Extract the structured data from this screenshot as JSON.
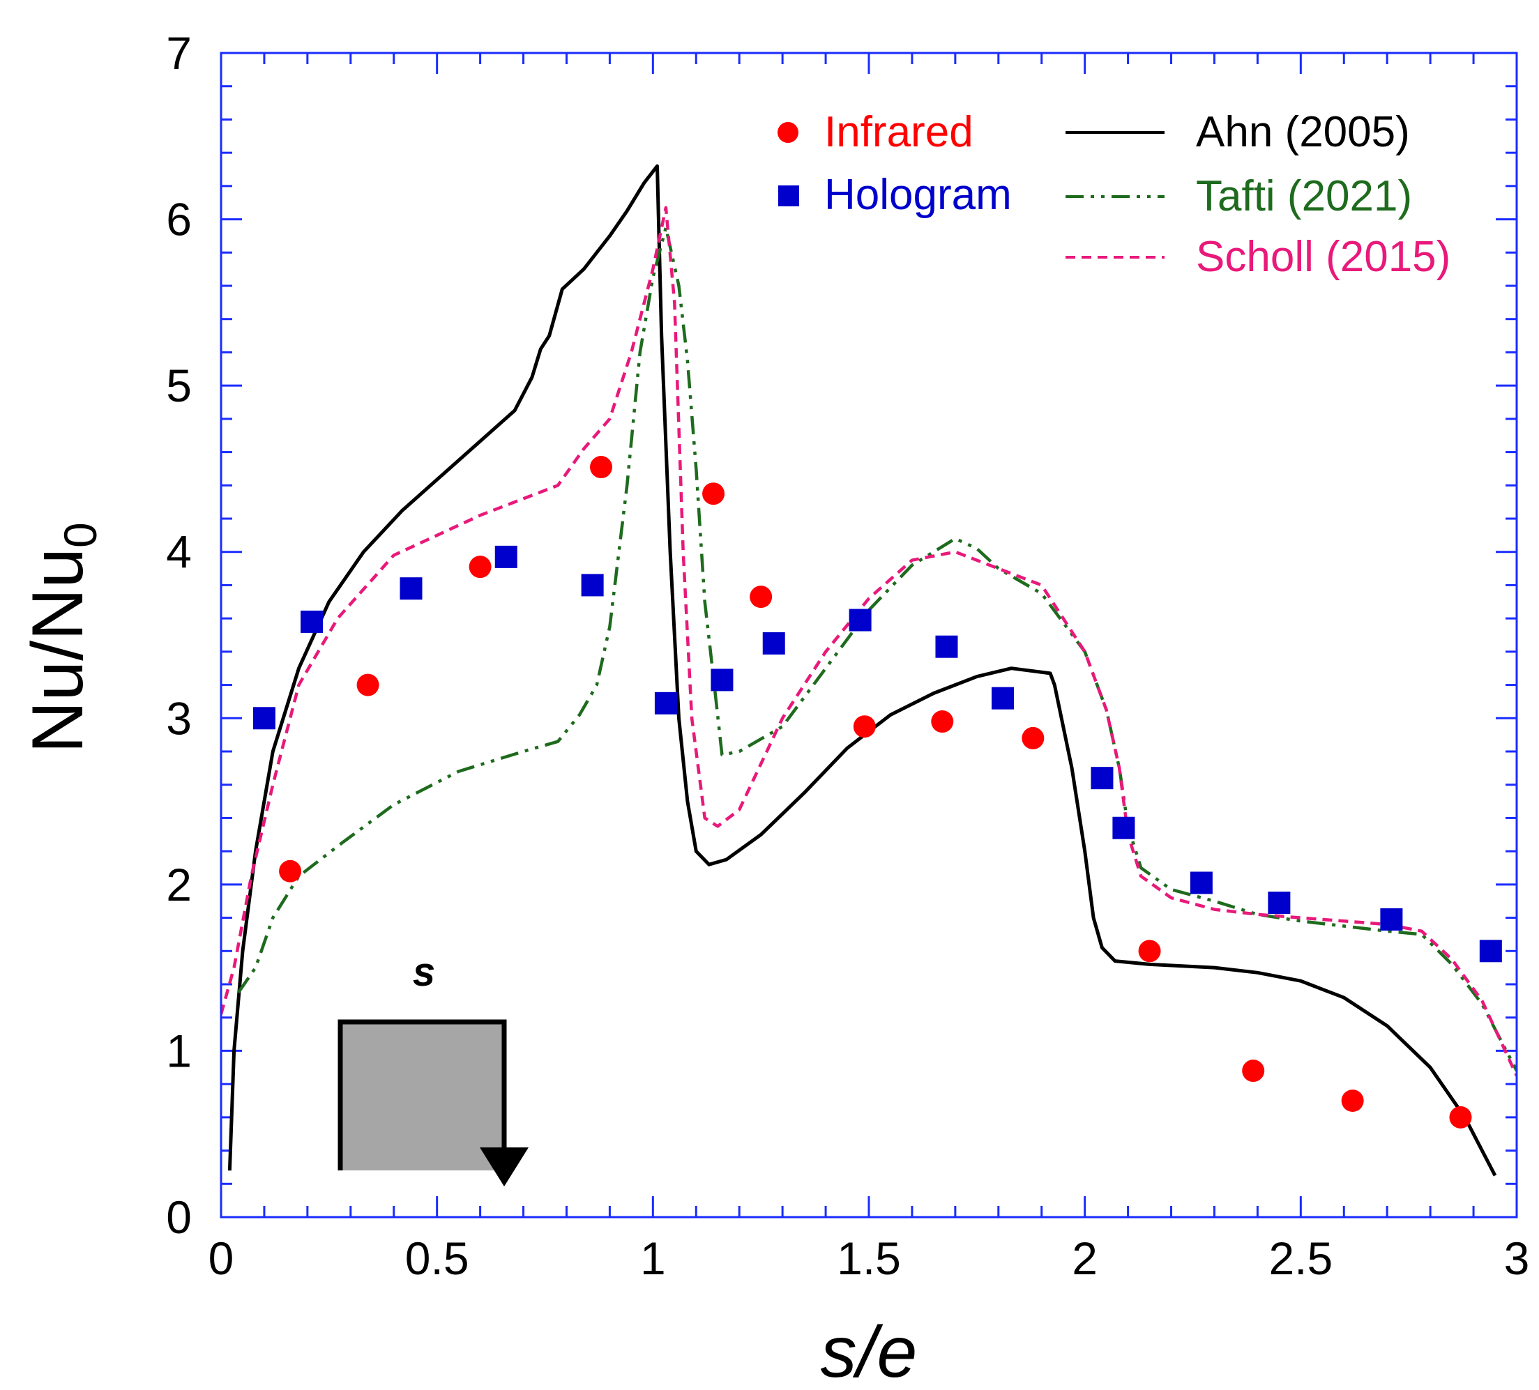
{
  "chart_data": {
    "type": "line",
    "xlabel_main": "s/e",
    "ylabel_main": "Nu/Nu",
    "ylabel_sub": "0",
    "xlim": [
      0,
      3
    ],
    "ylim": [
      0,
      7
    ],
    "x_ticks": [
      "0",
      "0.5",
      "1",
      "1.5",
      "2",
      "2.5",
      "3"
    ],
    "y_ticks": [
      "0",
      "1",
      "2",
      "3",
      "4",
      "5",
      "6",
      "7"
    ],
    "inset_label": "s",
    "series": [
      {
        "name": "Infrared",
        "kind": "scatter",
        "marker": "circle",
        "color": "#ff0000",
        "points": [
          [
            0.16,
            2.08
          ],
          [
            0.34,
            3.2
          ],
          [
            0.6,
            3.91
          ],
          [
            0.88,
            4.51
          ],
          [
            1.14,
            4.35
          ],
          [
            1.25,
            3.73
          ],
          [
            1.49,
            2.95
          ],
          [
            1.67,
            2.98
          ],
          [
            1.88,
            2.88
          ],
          [
            2.15,
            1.6
          ],
          [
            2.39,
            0.88
          ],
          [
            2.62,
            0.7
          ],
          [
            2.87,
            0.6
          ]
        ]
      },
      {
        "name": "Hologram",
        "kind": "scatter",
        "marker": "square",
        "color": "#0000cc",
        "points": [
          [
            0.1,
            3.0
          ],
          [
            0.21,
            3.58
          ],
          [
            0.44,
            3.78
          ],
          [
            0.66,
            3.97
          ],
          [
            0.86,
            3.8
          ],
          [
            1.03,
            3.09
          ],
          [
            1.16,
            3.23
          ],
          [
            1.28,
            3.45
          ],
          [
            1.48,
            3.59
          ],
          [
            1.68,
            3.43
          ],
          [
            1.81,
            3.12
          ],
          [
            2.04,
            2.64
          ],
          [
            2.09,
            2.34
          ],
          [
            2.27,
            2.01
          ],
          [
            2.45,
            1.89
          ],
          [
            2.71,
            1.79
          ],
          [
            2.94,
            1.6
          ]
        ]
      },
      {
        "name": "Ahn (2005)",
        "kind": "line",
        "dash": "solid",
        "color": "#000000",
        "points": [
          [
            0.02,
            0.28
          ],
          [
            0.03,
            1.0
          ],
          [
            0.05,
            1.6
          ],
          [
            0.08,
            2.2
          ],
          [
            0.12,
            2.8
          ],
          [
            0.18,
            3.3
          ],
          [
            0.25,
            3.7
          ],
          [
            0.33,
            4.0
          ],
          [
            0.42,
            4.25
          ],
          [
            0.55,
            4.55
          ],
          [
            0.68,
            4.85
          ],
          [
            0.72,
            5.05
          ],
          [
            0.74,
            5.22
          ],
          [
            0.76,
            5.3
          ],
          [
            0.79,
            5.58
          ],
          [
            0.84,
            5.7
          ],
          [
            0.9,
            5.9
          ],
          [
            0.94,
            6.05
          ],
          [
            0.98,
            6.22
          ],
          [
            1.01,
            6.32
          ],
          [
            1.013,
            6.0
          ],
          [
            1.02,
            5.3
          ],
          [
            1.04,
            4.0
          ],
          [
            1.06,
            3.0
          ],
          [
            1.08,
            2.5
          ],
          [
            1.1,
            2.2
          ],
          [
            1.13,
            2.12
          ],
          [
            1.17,
            2.15
          ],
          [
            1.25,
            2.3
          ],
          [
            1.35,
            2.55
          ],
          [
            1.45,
            2.82
          ],
          [
            1.55,
            3.02
          ],
          [
            1.65,
            3.15
          ],
          [
            1.75,
            3.25
          ],
          [
            1.83,
            3.3
          ],
          [
            1.92,
            3.27
          ],
          [
            1.93,
            3.2
          ],
          [
            1.97,
            2.7
          ],
          [
            2.0,
            2.2
          ],
          [
            2.02,
            1.8
          ],
          [
            2.04,
            1.62
          ],
          [
            2.07,
            1.54
          ],
          [
            2.15,
            1.52
          ],
          [
            2.3,
            1.5
          ],
          [
            2.4,
            1.47
          ],
          [
            2.5,
            1.42
          ],
          [
            2.6,
            1.32
          ],
          [
            2.7,
            1.15
          ],
          [
            2.8,
            0.9
          ],
          [
            2.88,
            0.6
          ],
          [
            2.95,
            0.25
          ]
        ]
      },
      {
        "name": "Tafti (2021)",
        "kind": "line",
        "dash": "dashdot",
        "color": "#1e6b1e",
        "points": [
          [
            0.04,
            1.35
          ],
          [
            0.08,
            1.5
          ],
          [
            0.12,
            1.8
          ],
          [
            0.18,
            2.05
          ],
          [
            0.28,
            2.25
          ],
          [
            0.4,
            2.48
          ],
          [
            0.55,
            2.68
          ],
          [
            0.7,
            2.8
          ],
          [
            0.78,
            2.86
          ],
          [
            0.83,
            3.02
          ],
          [
            0.87,
            3.2
          ],
          [
            0.9,
            3.55
          ],
          [
            0.94,
            4.4
          ],
          [
            0.97,
            5.2
          ],
          [
            1.0,
            5.65
          ],
          [
            1.03,
            5.95
          ],
          [
            1.06,
            5.6
          ],
          [
            1.08,
            5.15
          ],
          [
            1.1,
            4.5
          ],
          [
            1.12,
            3.7
          ],
          [
            1.14,
            3.25
          ],
          [
            1.16,
            2.78
          ],
          [
            1.2,
            2.8
          ],
          [
            1.3,
            2.95
          ],
          [
            1.4,
            3.3
          ],
          [
            1.5,
            3.65
          ],
          [
            1.6,
            3.92
          ],
          [
            1.7,
            4.08
          ],
          [
            1.75,
            4.02
          ],
          [
            1.8,
            3.9
          ],
          [
            1.9,
            3.75
          ],
          [
            2.0,
            3.4
          ],
          [
            2.05,
            3.05
          ],
          [
            2.08,
            2.7
          ],
          [
            2.1,
            2.35
          ],
          [
            2.13,
            2.1
          ],
          [
            2.2,
            1.97
          ],
          [
            2.3,
            1.9
          ],
          [
            2.4,
            1.82
          ],
          [
            2.5,
            1.78
          ],
          [
            2.6,
            1.75
          ],
          [
            2.7,
            1.72
          ],
          [
            2.78,
            1.7
          ],
          [
            2.85,
            1.52
          ],
          [
            2.92,
            1.28
          ],
          [
            3.0,
            0.88
          ]
        ]
      },
      {
        "name": "Scholl (2015)",
        "kind": "line",
        "dash": "dashed",
        "color": "#e8197a",
        "points": [
          [
            0.0,
            1.22
          ],
          [
            0.03,
            1.5
          ],
          [
            0.07,
            2.05
          ],
          [
            0.12,
            2.6
          ],
          [
            0.18,
            3.2
          ],
          [
            0.27,
            3.6
          ],
          [
            0.4,
            3.98
          ],
          [
            0.5,
            4.1
          ],
          [
            0.6,
            4.22
          ],
          [
            0.7,
            4.32
          ],
          [
            0.78,
            4.4
          ],
          [
            0.84,
            4.62
          ],
          [
            0.9,
            4.8
          ],
          [
            0.95,
            5.2
          ],
          [
            1.0,
            5.7
          ],
          [
            1.03,
            6.07
          ],
          [
            1.05,
            5.5
          ],
          [
            1.07,
            4.0
          ],
          [
            1.09,
            3.0
          ],
          [
            1.12,
            2.4
          ],
          [
            1.15,
            2.35
          ],
          [
            1.2,
            2.45
          ],
          [
            1.3,
            3.0
          ],
          [
            1.4,
            3.4
          ],
          [
            1.5,
            3.72
          ],
          [
            1.6,
            3.95
          ],
          [
            1.7,
            4.0
          ],
          [
            1.8,
            3.9
          ],
          [
            1.9,
            3.8
          ],
          [
            2.0,
            3.4
          ],
          [
            2.05,
            3.05
          ],
          [
            2.08,
            2.7
          ],
          [
            2.1,
            2.3
          ],
          [
            2.13,
            2.05
          ],
          [
            2.2,
            1.92
          ],
          [
            2.3,
            1.85
          ],
          [
            2.4,
            1.82
          ],
          [
            2.5,
            1.8
          ],
          [
            2.6,
            1.78
          ],
          [
            2.7,
            1.76
          ],
          [
            2.78,
            1.72
          ],
          [
            2.85,
            1.55
          ],
          [
            2.92,
            1.3
          ],
          [
            3.0,
            0.85
          ]
        ]
      }
    ]
  }
}
